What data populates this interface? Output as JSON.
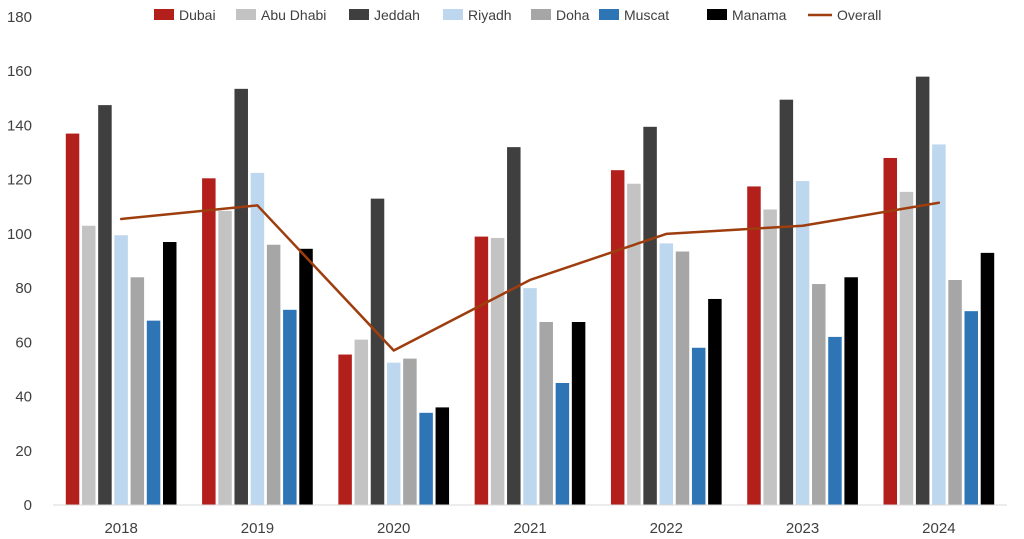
{
  "chart_data": {
    "type": "bar",
    "title": "",
    "xlabel": "",
    "ylabel": "",
    "ylim": [
      0,
      180
    ],
    "yticks": [
      0,
      20,
      40,
      60,
      80,
      100,
      120,
      140,
      160,
      180
    ],
    "grid": false,
    "legend_position": "top",
    "categories": [
      "2018",
      "2019",
      "2020",
      "2021",
      "2022",
      "2023",
      "2024"
    ],
    "series": [
      {
        "name": "Dubai",
        "color": "#b3201b",
        "values": [
          137,
          120.5,
          55.5,
          99,
          123.5,
          117.5,
          128
        ]
      },
      {
        "name": "Abu Dhabi",
        "color": "#c3c3c3",
        "values": [
          103,
          108.5,
          61,
          98.5,
          118.5,
          109,
          115.5
        ]
      },
      {
        "name": "Jeddah",
        "color": "#3f3f3f",
        "values": [
          147.5,
          153.5,
          113,
          132,
          139.5,
          149.5,
          158
        ]
      },
      {
        "name": "Riyadh",
        "color": "#bdd7ee",
        "values": [
          99.5,
          122.5,
          52.5,
          80,
          96.5,
          119.5,
          133
        ]
      },
      {
        "name": "Doha",
        "color": "#a6a6a6",
        "values": [
          84,
          96,
          54,
          67.5,
          93.5,
          81.5,
          83
        ]
      },
      {
        "name": "Muscat",
        "color": "#2e75b6",
        "values": [
          68,
          72,
          34,
          45,
          58,
          62,
          71.5
        ]
      },
      {
        "name": "Manama",
        "color": "#000000",
        "values": [
          97,
          94.5,
          36,
          67.5,
          76,
          84,
          93
        ]
      }
    ],
    "line_series": {
      "name": "Overall",
      "color": "#9e3d0e",
      "values": [
        105.5,
        110.5,
        57,
        83,
        100,
        103,
        111.5
      ]
    }
  }
}
